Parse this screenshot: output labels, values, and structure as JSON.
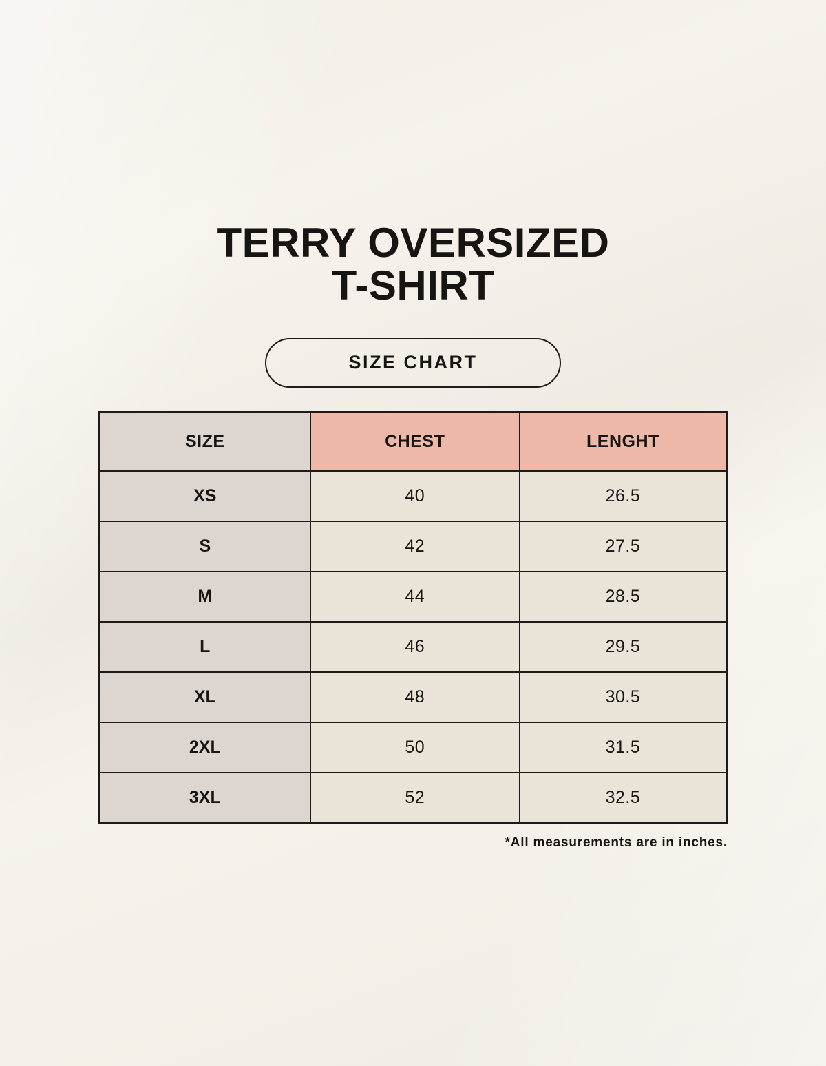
{
  "title": {
    "line1": "TERRY OVERSIZED",
    "line2": "T-SHIRT"
  },
  "size_chart_button": {
    "label": "SIZE CHART"
  },
  "table": {
    "headers": [
      "SIZE",
      "CHEST",
      "LENGHT"
    ],
    "rows": [
      {
        "size": "XS",
        "chest": "40",
        "lenght": "26.5"
      },
      {
        "size": "S",
        "chest": "42",
        "lenght": "27.5"
      },
      {
        "size": "M",
        "chest": "44",
        "lenght": "28.5"
      },
      {
        "size": "L",
        "chest": "46",
        "lenght": "29.5"
      },
      {
        "size": "XL",
        "chest": "48",
        "lenght": "30.5"
      },
      {
        "size": "2XL",
        "chest": "50",
        "lenght": "31.5"
      },
      {
        "size": "3XL",
        "chest": "52",
        "lenght": "32.5"
      }
    ]
  },
  "footnote": "*All measurements are in inches.",
  "colors": {
    "background": "#f7f3ec",
    "cell-gray": "#ddd6d0",
    "accent-pink": "#edb8a7",
    "cell-cream": "#e9e3d8",
    "border-dark": "#1c1b19",
    "text-dark": "#161513"
  },
  "chart_data": {
    "type": "table",
    "title": "TERRY OVERSIZED T-SHIRT",
    "subtitle": "SIZE CHART",
    "columns": [
      "SIZE",
      "CHEST",
      "LENGHT"
    ],
    "rows": [
      [
        "XS",
        40,
        26.5
      ],
      [
        "S",
        42,
        27.5
      ],
      [
        "M",
        44,
        28.5
      ],
      [
        "L",
        46,
        29.5
      ],
      [
        "XL",
        48,
        30.5
      ],
      [
        "2XL",
        50,
        31.5
      ],
      [
        "3XL",
        52,
        32.5
      ]
    ],
    "note": "*All measurements are in inches.",
    "units": "inches"
  }
}
